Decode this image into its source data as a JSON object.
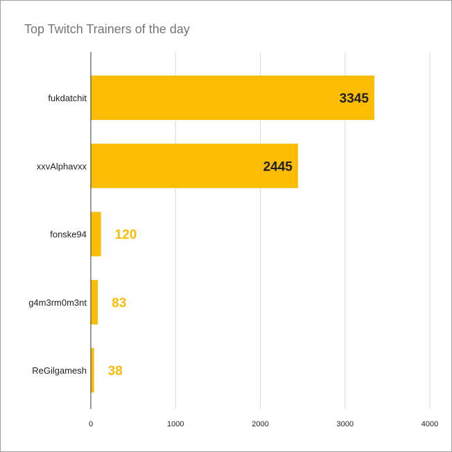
{
  "chart_data": {
    "type": "bar",
    "orientation": "horizontal",
    "title": "Top Twitch Trainers of the day",
    "xlabel": "",
    "ylabel": "",
    "categories": [
      "fukdatchit",
      "xxvAlphavxx",
      "fonske94",
      "g4m3rm0m3nt",
      "ReGilgamesh"
    ],
    "values": [
      3345,
      2445,
      120,
      83,
      38
    ],
    "xlim": [
      0,
      4000
    ],
    "xticks": [
      0,
      1000,
      2000,
      3000,
      4000
    ],
    "grid": true,
    "legend": "none",
    "bar_color": "#fbbc04",
    "label_inside_color": "#202124",
    "label_outside_color": "#fbbc04"
  }
}
